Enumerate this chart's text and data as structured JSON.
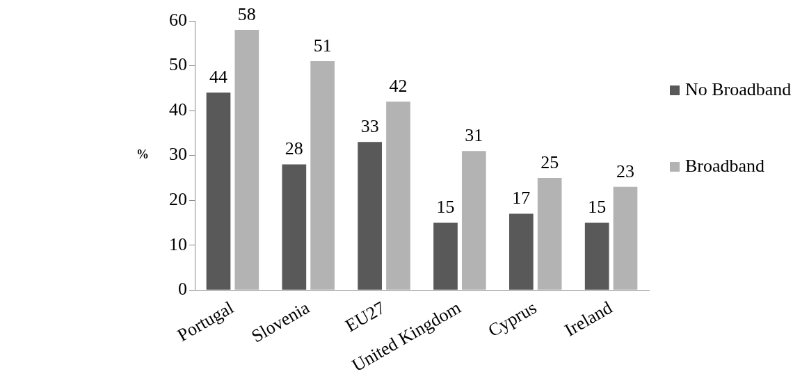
{
  "chart_data": {
    "type": "bar",
    "ylabel": "%",
    "categories": [
      "Portugal",
      "Slovenia",
      "EU27",
      "United Kingdom",
      "Cyprus",
      "Ireland"
    ],
    "series": [
      {
        "name": "No Broadband",
        "color": "#595959",
        "values": [
          44,
          28,
          33,
          15,
          17,
          15
        ]
      },
      {
        "name": "Broadband",
        "color": "#b3b3b3",
        "values": [
          58,
          51,
          42,
          31,
          25,
          23
        ]
      }
    ],
    "ylim": [
      0,
      60
    ],
    "yticks": [
      0,
      10,
      20,
      30,
      40,
      50,
      60
    ],
    "grid": false,
    "legend": "right",
    "data_labels": true
  }
}
